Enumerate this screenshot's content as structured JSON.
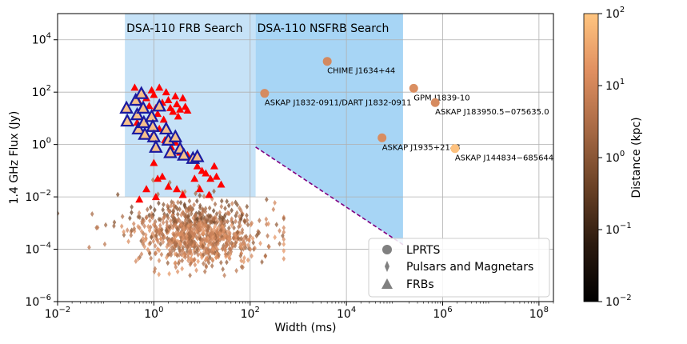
{
  "chart_data": {
    "type": "scatter",
    "title": "",
    "xlabel": "Width (ms)",
    "ylabel": "1.4 GHz Flux (Jy)",
    "x_scale": "log",
    "y_scale": "log",
    "xlim": [
      0.01,
      200000000
    ],
    "ylim": [
      1e-06,
      100000
    ],
    "x_ticks": [
      {
        "value": 0.01,
        "base": "10",
        "exp": "−2"
      },
      {
        "value": 1,
        "base": "10",
        "exp": "0"
      },
      {
        "value": 100,
        "base": "10",
        "exp": "2"
      },
      {
        "value": 10000,
        "base": "10",
        "exp": "4"
      },
      {
        "value": 1000000,
        "base": "10",
        "exp": "6"
      },
      {
        "value": 100000000,
        "base": "10",
        "exp": "8"
      }
    ],
    "y_ticks": [
      {
        "value": 1e-06,
        "base": "10",
        "exp": "−6"
      },
      {
        "value": 0.0001,
        "base": "10",
        "exp": "−4"
      },
      {
        "value": 0.01,
        "base": "10",
        "exp": "−2"
      },
      {
        "value": 1,
        "base": "10",
        "exp": "0"
      },
      {
        "value": 100,
        "base": "10",
        "exp": "2"
      },
      {
        "value": 10000,
        "base": "10",
        "exp": "4"
      }
    ],
    "grid": true,
    "regions": [
      {
        "name": "DSA-110 FRB Search",
        "x_range": [
          0.25,
          130
        ],
        "y_top": 100000,
        "y_bottom_left": 0.01,
        "y_bottom_right": 0.01,
        "color": "#c6e2f7"
      },
      {
        "name": "DSA-110 NSFRB Search",
        "x_range": [
          130,
          150000
        ],
        "y_top": 100000,
        "y_bottom_left": 0.8,
        "y_bottom_right": 0.00015,
        "color": "#a7d5f5"
      }
    ],
    "sensitivity_line": {
      "x": [
        130,
        150000
      ],
      "y": [
        0.8,
        0.00015
      ],
      "color": "#800080",
      "style": "dashed"
    },
    "lprts": [
      {
        "name": "CHIME J1634+44",
        "x": 4000,
        "y": 1500,
        "distance_kpc": 4
      },
      {
        "name": "ASKAP J1832-0911/DART J1832-0911",
        "x": 200,
        "y": 90,
        "distance_kpc": 4.5
      },
      {
        "name": "GPM J1839-10",
        "x": 250000,
        "y": 140,
        "distance_kpc": 5.7
      },
      {
        "name": "ASKAP J183950.5−075635.0",
        "x": 700000,
        "y": 40,
        "distance_kpc": 4.6
      },
      {
        "name": "ASKAP J1935+2148",
        "x": 55000,
        "y": 1.8,
        "distance_kpc": 5
      },
      {
        "name": "ASKAP J144834−685644",
        "x": 1800000,
        "y": 0.7,
        "distance_kpc": 80
      }
    ],
    "frb_triangles_red": [
      {
        "x": 0.4,
        "y": 150
      },
      {
        "x": 0.5,
        "y": 40
      },
      {
        "x": 0.55,
        "y": 20
      },
      {
        "x": 0.6,
        "y": 90
      },
      {
        "x": 0.7,
        "y": 60
      },
      {
        "x": 0.8,
        "y": 30
      },
      {
        "x": 0.9,
        "y": 120
      },
      {
        "x": 1.0,
        "y": 80
      },
      {
        "x": 1.1,
        "y": 25
      },
      {
        "x": 1.2,
        "y": 15
      },
      {
        "x": 1.3,
        "y": 150
      },
      {
        "x": 1.5,
        "y": 40
      },
      {
        "x": 1.6,
        "y": 9
      },
      {
        "x": 1.8,
        "y": 100
      },
      {
        "x": 2.0,
        "y": 50
      },
      {
        "x": 2.2,
        "y": 25
      },
      {
        "x": 2.5,
        "y": 18
      },
      {
        "x": 2.8,
        "y": 70
      },
      {
        "x": 3.0,
        "y": 35
      },
      {
        "x": 3.2,
        "y": 12
      },
      {
        "x": 3.5,
        "y": 22
      },
      {
        "x": 4.0,
        "y": 60
      },
      {
        "x": 4.5,
        "y": 28
      },
      {
        "x": 5.0,
        "y": 20
      },
      {
        "x": 0.45,
        "y": 7
      },
      {
        "x": 0.65,
        "y": 3
      },
      {
        "x": 0.9,
        "y": 2
      },
      {
        "x": 1.3,
        "y": 4
      },
      {
        "x": 1.7,
        "y": 1.5
      },
      {
        "x": 2.3,
        "y": 0.8
      },
      {
        "x": 2.8,
        "y": 1.2
      },
      {
        "x": 3.5,
        "y": 0.5
      },
      {
        "x": 5.0,
        "y": 0.4
      },
      {
        "x": 6.0,
        "y": 0.25
      },
      {
        "x": 8.0,
        "y": 0.15
      },
      {
        "x": 10,
        "y": 0.1
      },
      {
        "x": 12,
        "y": 0.08
      },
      {
        "x": 15,
        "y": 0.05
      },
      {
        "x": 18,
        "y": 0.15
      },
      {
        "x": 20,
        "y": 0.06
      },
      {
        "x": 7,
        "y": 0.05
      },
      {
        "x": 1.2,
        "y": 0.05
      },
      {
        "x": 0.7,
        "y": 0.02
      },
      {
        "x": 3.0,
        "y": 0.02
      },
      {
        "x": 25,
        "y": 0.03
      },
      {
        "x": 1.1,
        "y": 0.01
      },
      {
        "x": 4.0,
        "y": 0.012
      },
      {
        "x": 0.5,
        "y": 0.008
      },
      {
        "x": 2.0,
        "y": 0.025
      },
      {
        "x": 9,
        "y": 0.02
      },
      {
        "x": 14,
        "y": 0.012
      },
      {
        "x": 1.0,
        "y": 0.2
      },
      {
        "x": 1.5,
        "y": 0.06
      }
    ],
    "frb_triangles_outlined": [
      {
        "x": 0.27,
        "y": 25
      },
      {
        "x": 0.28,
        "y": 8
      },
      {
        "x": 0.42,
        "y": 50
      },
      {
        "x": 0.45,
        "y": 14
      },
      {
        "x": 0.48,
        "y": 4
      },
      {
        "x": 0.55,
        "y": 90
      },
      {
        "x": 0.6,
        "y": 25
      },
      {
        "x": 0.62,
        "y": 7
      },
      {
        "x": 0.65,
        "y": 2.5
      },
      {
        "x": 0.9,
        "y": 12
      },
      {
        "x": 0.95,
        "y": 5
      },
      {
        "x": 1.0,
        "y": 2
      },
      {
        "x": 1.1,
        "y": 0.8
      },
      {
        "x": 1.3,
        "y": 30
      },
      {
        "x": 1.8,
        "y": 4
      },
      {
        "x": 2.0,
        "y": 1.5
      },
      {
        "x": 2.2,
        "y": 0.5
      },
      {
        "x": 2.8,
        "y": 2
      },
      {
        "x": 3.5,
        "y": 0.7
      },
      {
        "x": 4.2,
        "y": 0.4
      },
      {
        "x": 6.5,
        "y": 0.3
      },
      {
        "x": 8.0,
        "y": 0.35
      }
    ],
    "colorbar": {
      "label": "Distance (kpc)",
      "scale": "log",
      "range": [
        0.01,
        100
      ],
      "ticks": [
        {
          "value": 0.01,
          "base": "10",
          "exp": "−2"
        },
        {
          "value": 0.1,
          "base": "10",
          "exp": "−1"
        },
        {
          "value": 1,
          "base": "10",
          "exp": "0"
        },
        {
          "value": 10,
          "base": "10",
          "exp": "1"
        },
        {
          "value": 100,
          "base": "10",
          "exp": "2"
        }
      ],
      "colors": [
        "#000000",
        "#3a2516",
        "#8a5836",
        "#c9815a",
        "#f0a06c",
        "#ffc580"
      ]
    },
    "legend": {
      "position": "lower-right",
      "entries": [
        {
          "label": "LPRTS",
          "marker": "circle"
        },
        {
          "label": "Pulsars and Magnetars",
          "marker": "diamond"
        },
        {
          "label": "FRBs",
          "marker": "triangle"
        }
      ]
    },
    "pulsar_cloud": {
      "count": 900,
      "x_center_log10": 0.9,
      "x_spread_log10": 0.55,
      "y_center_log10": -3.4,
      "y_spread_log10": 0.6,
      "x_extent": [
        0.01,
        500
      ],
      "y_extent": [
        1e-05,
        0.1
      ]
    }
  }
}
